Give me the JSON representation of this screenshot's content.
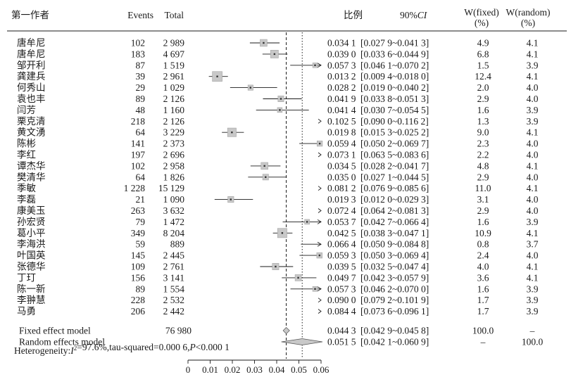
{
  "chart_data": {
    "type": "forest",
    "headers": {
      "author": "第一作者",
      "events": "Events",
      "total": "Total",
      "ratio": "比例",
      "ci": "90%CI",
      "w_fixed": "W(fixed)",
      "w_fixed_unit": "(%)",
      "w_random": "W(random)",
      "w_random_unit": "(%)"
    },
    "studies": [
      {
        "author": "唐牟尼",
        "events": "102",
        "total": "2 989",
        "est": 0.0341,
        "lo": 0.0279,
        "hi": 0.0413,
        "est_text": "0.034 1",
        "ci_text": "[0.027 9~0.041 3]",
        "w_fixed": "4.9",
        "w_random": "4.1"
      },
      {
        "author": "唐牟尼",
        "events": "183",
        "total": "4 697",
        "est": 0.039,
        "lo": 0.0336,
        "hi": 0.0449,
        "est_text": "0.039 0",
        "ci_text": "[0.033 6~0.044 9]",
        "w_fixed": "6.8",
        "w_random": "4.1"
      },
      {
        "author": "邹开利",
        "events": "87",
        "total": "1 519",
        "est": 0.0573,
        "lo": 0.0461,
        "hi": 0.0702,
        "est_text": "0.057 3",
        "ci_text": "[0.046 1~0.070 2]",
        "w_fixed": "1.5",
        "w_random": "3.9"
      },
      {
        "author": "龚建兵",
        "events": "39",
        "total": "2 961",
        "est": 0.0132,
        "lo": 0.0094,
        "hi": 0.018,
        "est_text": "0.013 2",
        "ci_text": "[0.009 4~0.018 0]",
        "w_fixed": "12.4",
        "w_random": "4.1"
      },
      {
        "author": "何秀山",
        "events": "29",
        "total": "1 029",
        "est": 0.0282,
        "lo": 0.019,
        "hi": 0.0402,
        "est_text": "0.028 2",
        "ci_text": "[0.019 0~0.040 2]",
        "w_fixed": "2.0",
        "w_random": "4.0"
      },
      {
        "author": "袁也丰",
        "events": "89",
        "total": "2 126",
        "est": 0.0419,
        "lo": 0.0338,
        "hi": 0.0513,
        "est_text": "0.041 9",
        "ci_text": "[0.033 8~0.051 3]",
        "w_fixed": "2.9",
        "w_random": "4.0"
      },
      {
        "author": "闫芳",
        "events": "48",
        "total": "1 160",
        "est": 0.0414,
        "lo": 0.0307,
        "hi": 0.0545,
        "est_text": "0.041 4",
        "ci_text": "[0.030 7~0.054 5]",
        "w_fixed": "1.6",
        "w_random": "3.9"
      },
      {
        "author": "栗克清",
        "events": "218",
        "total": "2 126",
        "est": 0.1025,
        "lo": 0.09,
        "hi": 0.1162,
        "est_text": "0.102 5",
        "ci_text": "[0.090 0~0.116 2]",
        "w_fixed": "1.3",
        "w_random": "3.9"
      },
      {
        "author": "黄文湧",
        "events": "64",
        "total": "3 229",
        "est": 0.0198,
        "lo": 0.0153,
        "hi": 0.0252,
        "est_text": "0.019 8",
        "ci_text": "[0.015 3~0.025 2]",
        "w_fixed": "9.0",
        "w_random": "4.1"
      },
      {
        "author": "陈彬",
        "events": "141",
        "total": "2 373",
        "est": 0.0594,
        "lo": 0.0502,
        "hi": 0.0697,
        "est_text": "0.059 4",
        "ci_text": "[0.050 2~0.069 7]",
        "w_fixed": "2.3",
        "w_random": "4.0"
      },
      {
        "author": "李红",
        "events": "197",
        "total": "2 696",
        "est": 0.0731,
        "lo": 0.0635,
        "hi": 0.0836,
        "est_text": "0.073 1",
        "ci_text": "[0.063 5~0.083 6]",
        "w_fixed": "2.2",
        "w_random": "4.0"
      },
      {
        "author": "谭杰华",
        "events": "102",
        "total": "2 958",
        "est": 0.0345,
        "lo": 0.0282,
        "hi": 0.0417,
        "est_text": "0.034 5",
        "ci_text": "[0.028 2~0.041 7]",
        "w_fixed": "4.8",
        "w_random": "4.1"
      },
      {
        "author": "樊清华",
        "events": "64",
        "total": "1 826",
        "est": 0.035,
        "lo": 0.0271,
        "hi": 0.0445,
        "est_text": "0.035 0",
        "ci_text": "[0.027 1~0.044 5]",
        "w_fixed": "2.9",
        "w_random": "4.0"
      },
      {
        "author": "季敏",
        "events": "1 228",
        "total": "15 129",
        "est": 0.0812,
        "lo": 0.0769,
        "hi": 0.0856,
        "est_text": "0.081 2",
        "ci_text": "[0.076 9~0.085 6]",
        "w_fixed": "11.0",
        "w_random": "4.1"
      },
      {
        "author": "李磊",
        "events": "21",
        "total": "1 090",
        "est": 0.0193,
        "lo": 0.012,
        "hi": 0.0293,
        "est_text": "0.019 3",
        "ci_text": "[0.012 0~0.029 3]",
        "w_fixed": "3.1",
        "w_random": "4.0"
      },
      {
        "author": "康美玉",
        "events": "263",
        "total": "3 632",
        "est": 0.0724,
        "lo": 0.0642,
        "hi": 0.0813,
        "est_text": "0.072 4",
        "ci_text": "[0.064 2~0.081 3]",
        "w_fixed": "2.9",
        "w_random": "4.0"
      },
      {
        "author": "孙宏贤",
        "events": "79",
        "total": "1 472",
        "est": 0.0537,
        "lo": 0.0427,
        "hi": 0.0664,
        "est_text": "0.053 7",
        "ci_text": "[0.042 7~0.066 4]",
        "w_fixed": "1.6",
        "w_random": "3.9"
      },
      {
        "author": "葛小平",
        "events": "349",
        "total": "8 204",
        "est": 0.0425,
        "lo": 0.0383,
        "hi": 0.0471,
        "est_text": "0.042 5",
        "ci_text": "[0.038 3~0.047 1]",
        "w_fixed": "10.9",
        "w_random": "4.1"
      },
      {
        "author": "李海洪",
        "events": "59",
        "total": "889",
        "est": 0.0664,
        "lo": 0.0509,
        "hi": 0.0848,
        "est_text": "0.066 4",
        "ci_text": "[0.050 9~0.084 8]",
        "w_fixed": "0.8",
        "w_random": "3.7"
      },
      {
        "author": "叶国英",
        "events": "145",
        "total": "2 445",
        "est": 0.0593,
        "lo": 0.0503,
        "hi": 0.0694,
        "est_text": "0.059 3",
        "ci_text": "[0.050 3~0.069 4]",
        "w_fixed": "2.4",
        "w_random": "4.0"
      },
      {
        "author": "张德华",
        "events": "109",
        "total": "2 761",
        "est": 0.0395,
        "lo": 0.0325,
        "hi": 0.0474,
        "est_text": "0.039 5",
        "ci_text": "[0.032 5~0.047 4]",
        "w_fixed": "4.0",
        "w_random": "4.1"
      },
      {
        "author": "丁玎",
        "events": "156",
        "total": "3 141",
        "est": 0.0497,
        "lo": 0.0423,
        "hi": 0.0579,
        "est_text": "0.049 7",
        "ci_text": "[0.042 3~0.057 9]",
        "w_fixed": "3.6",
        "w_random": "4.1"
      },
      {
        "author": "陈一新",
        "events": "89",
        "total": "1 554",
        "est": 0.0573,
        "lo": 0.0462,
        "hi": 0.07,
        "est_text": "0.057 3",
        "ci_text": "[0.046 2~0.070 0]",
        "w_fixed": "1.6",
        "w_random": "3.9"
      },
      {
        "author": "李翀慧",
        "events": "228",
        "total": "2 532",
        "est": 0.09,
        "lo": 0.0792,
        "hi": 0.1019,
        "est_text": "0.090 0",
        "ci_text": "[0.079 2~0.101 9]",
        "w_fixed": "1.7",
        "w_random": "3.9"
      },
      {
        "author": "马勇",
        "events": "206",
        "total": "2 442",
        "est": 0.0844,
        "lo": 0.0736,
        "hi": 0.0961,
        "est_text": "0.084 4",
        "ci_text": "[0.073 6~0.096 1]",
        "w_fixed": "1.7",
        "w_random": "3.9"
      }
    ],
    "summary": [
      {
        "label": "Fixed effect model",
        "total": "76 980",
        "est": 0.0443,
        "lo": 0.0429,
        "hi": 0.0458,
        "est_text": "0.044 3",
        "ci_text": "[0.042 9~0.045 8]",
        "w_fixed": "100.0",
        "w_random": "–"
      },
      {
        "label": "Random effects model",
        "total": "",
        "est": 0.0515,
        "lo": 0.0421,
        "hi": 0.0609,
        "est_text": "0.051 5",
        "ci_text": "[0.042 1~0.060 9]",
        "w_fixed": "–",
        "w_random": "100.0"
      }
    ],
    "heterogeneity": {
      "prefix": "Heterogeneity:",
      "i2_symbol": "I",
      "i2_sup": "2",
      "i2_value": "=97.6%,tau-squared=0.000 6,",
      "p_symbol": "P",
      "p_value": "<0.000 1"
    },
    "x_axis": {
      "range": [
        0,
        0.06
      ],
      "ticks": [
        0,
        0.01,
        0.02,
        0.03,
        0.04,
        0.05,
        0.06
      ],
      "tick_labels": [
        "0",
        "0.01",
        "0.02",
        "0.03",
        "0.04",
        "0.05",
        "0.06"
      ]
    },
    "reference_lines": {
      "fixed": 0.0443,
      "random": 0.0515
    },
    "colors": {
      "square": "#c8c8c8",
      "square_edge": "#9a9a9a",
      "diamond_fixed": "#c8c8c8",
      "diamond_random": "#c8c8c8",
      "line": "#1a1a1a"
    }
  }
}
